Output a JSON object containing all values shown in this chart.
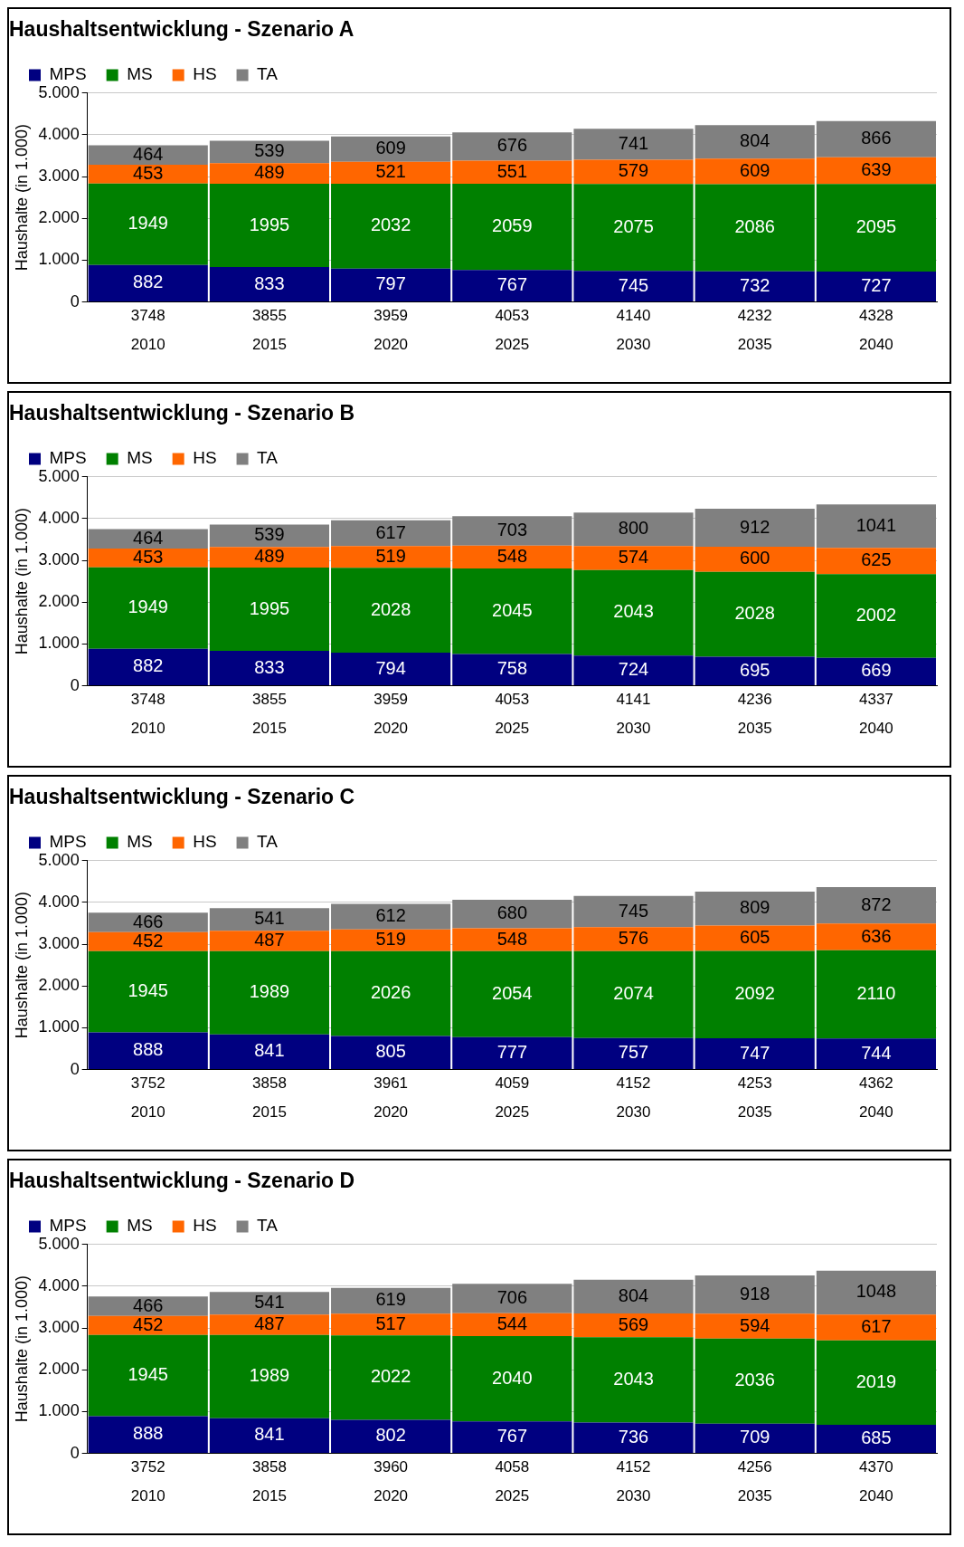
{
  "chart_data": [
    {
      "type": "bar",
      "stacked": true,
      "title": "Haushaltsentwicklung - Szenario A",
      "ylabel": "Haushalte (in 1.000)",
      "categories": [
        "2010",
        "2015",
        "2020",
        "2025",
        "2030",
        "2035",
        "2040"
      ],
      "series": [
        {
          "name": "MPS",
          "color": "#000080",
          "values": [
            882,
            833,
            797,
            767,
            745,
            732,
            727
          ]
        },
        {
          "name": "MS",
          "color": "#008000",
          "values": [
            1949,
            1995,
            2032,
            2059,
            2075,
            2086,
            2095
          ]
        },
        {
          "name": "HS",
          "color": "#ff6600",
          "values": [
            453,
            489,
            521,
            551,
            579,
            609,
            639
          ]
        },
        {
          "name": "TA",
          "color": "#808080",
          "values": [
            464,
            539,
            609,
            676,
            741,
            804,
            866
          ]
        }
      ],
      "totals": [
        "3748",
        "3855",
        "3959",
        "4053",
        "4140",
        "4232",
        "4328"
      ],
      "data_labels": true,
      "ylim": [
        0,
        5000
      ],
      "yticks": [
        {
          "value": 0,
          "label": "0"
        },
        {
          "value": 1000,
          "label": "1.000"
        },
        {
          "value": 2000,
          "label": "2.000"
        },
        {
          "value": 3000,
          "label": "3.000"
        },
        {
          "value": 4000,
          "label": "4.000"
        },
        {
          "value": 5000,
          "label": "5.000"
        }
      ],
      "grid": "y",
      "legend": "top left"
    },
    {
      "type": "bar",
      "stacked": true,
      "title": "Haushaltsentwicklung - Szenario B",
      "ylabel": "Haushalte (in 1.000)",
      "categories": [
        "2010",
        "2015",
        "2020",
        "2025",
        "2030",
        "2035",
        "2040"
      ],
      "series": [
        {
          "name": "MPS",
          "color": "#000080",
          "values": [
            882,
            833,
            794,
            758,
            724,
            695,
            669
          ]
        },
        {
          "name": "MS",
          "color": "#008000",
          "values": [
            1949,
            1995,
            2028,
            2045,
            2043,
            2028,
            2002
          ]
        },
        {
          "name": "HS",
          "color": "#ff6600",
          "values": [
            453,
            489,
            519,
            548,
            574,
            600,
            625
          ]
        },
        {
          "name": "TA",
          "color": "#808080",
          "values": [
            464,
            539,
            617,
            703,
            800,
            912,
            1041
          ]
        }
      ],
      "totals": [
        "3748",
        "3855",
        "3959",
        "4053",
        "4141",
        "4236",
        "4337"
      ],
      "data_labels": true,
      "ylim": [
        0,
        5000
      ],
      "yticks": [
        {
          "value": 0,
          "label": "0"
        },
        {
          "value": 1000,
          "label": "1.000"
        },
        {
          "value": 2000,
          "label": "2.000"
        },
        {
          "value": 3000,
          "label": "3.000"
        },
        {
          "value": 4000,
          "label": "4.000"
        },
        {
          "value": 5000,
          "label": "5.000"
        }
      ],
      "grid": "y",
      "legend": "top left"
    },
    {
      "type": "bar",
      "stacked": true,
      "title": "Haushaltsentwicklung - Szenario C",
      "ylabel": "Haushalte (in 1.000)",
      "categories": [
        "2010",
        "2015",
        "2020",
        "2025",
        "2030",
        "2035",
        "2040"
      ],
      "series": [
        {
          "name": "MPS",
          "color": "#000080",
          "values": [
            888,
            841,
            805,
            777,
            757,
            747,
            744
          ]
        },
        {
          "name": "MS",
          "color": "#008000",
          "values": [
            1945,
            1989,
            2026,
            2054,
            2074,
            2092,
            2110
          ]
        },
        {
          "name": "HS",
          "color": "#ff6600",
          "values": [
            452,
            487,
            519,
            548,
            576,
            605,
            636
          ]
        },
        {
          "name": "TA",
          "color": "#808080",
          "values": [
            466,
            541,
            612,
            680,
            745,
            809,
            872
          ]
        }
      ],
      "totals": [
        "3752",
        "3858",
        "3961",
        "4059",
        "4152",
        "4253",
        "4362"
      ],
      "data_labels": true,
      "ylim": [
        0,
        5000
      ],
      "yticks": [
        {
          "value": 0,
          "label": "0"
        },
        {
          "value": 1000,
          "label": "1.000"
        },
        {
          "value": 2000,
          "label": "2.000"
        },
        {
          "value": 3000,
          "label": "3.000"
        },
        {
          "value": 4000,
          "label": "4.000"
        },
        {
          "value": 5000,
          "label": "5.000"
        }
      ],
      "grid": "y",
      "legend": "top left"
    },
    {
      "type": "bar",
      "stacked": true,
      "title": "Haushaltsentwicklung - Szenario D",
      "ylabel": "Haushalte (in 1.000)",
      "categories": [
        "2010",
        "2015",
        "2020",
        "2025",
        "2030",
        "2035",
        "2040"
      ],
      "series": [
        {
          "name": "MPS",
          "color": "#000080",
          "values": [
            888,
            841,
            802,
            767,
            736,
            709,
            685
          ]
        },
        {
          "name": "MS",
          "color": "#008000",
          "values": [
            1945,
            1989,
            2022,
            2040,
            2043,
            2036,
            2019
          ]
        },
        {
          "name": "HS",
          "color": "#ff6600",
          "values": [
            452,
            487,
            517,
            544,
            569,
            594,
            617
          ]
        },
        {
          "name": "TA",
          "color": "#808080",
          "values": [
            466,
            541,
            619,
            706,
            804,
            918,
            1048
          ]
        }
      ],
      "totals": [
        "3752",
        "3858",
        "3960",
        "4058",
        "4152",
        "4256",
        "4370"
      ],
      "data_labels": true,
      "ylim": [
        0,
        5000
      ],
      "yticks": [
        {
          "value": 0,
          "label": "0"
        },
        {
          "value": 1000,
          "label": "1.000"
        },
        {
          "value": 2000,
          "label": "2.000"
        },
        {
          "value": 3000,
          "label": "3.000"
        },
        {
          "value": 4000,
          "label": "4.000"
        },
        {
          "value": 5000,
          "label": "5.000"
        }
      ],
      "grid": "y",
      "legend": "top left"
    }
  ]
}
